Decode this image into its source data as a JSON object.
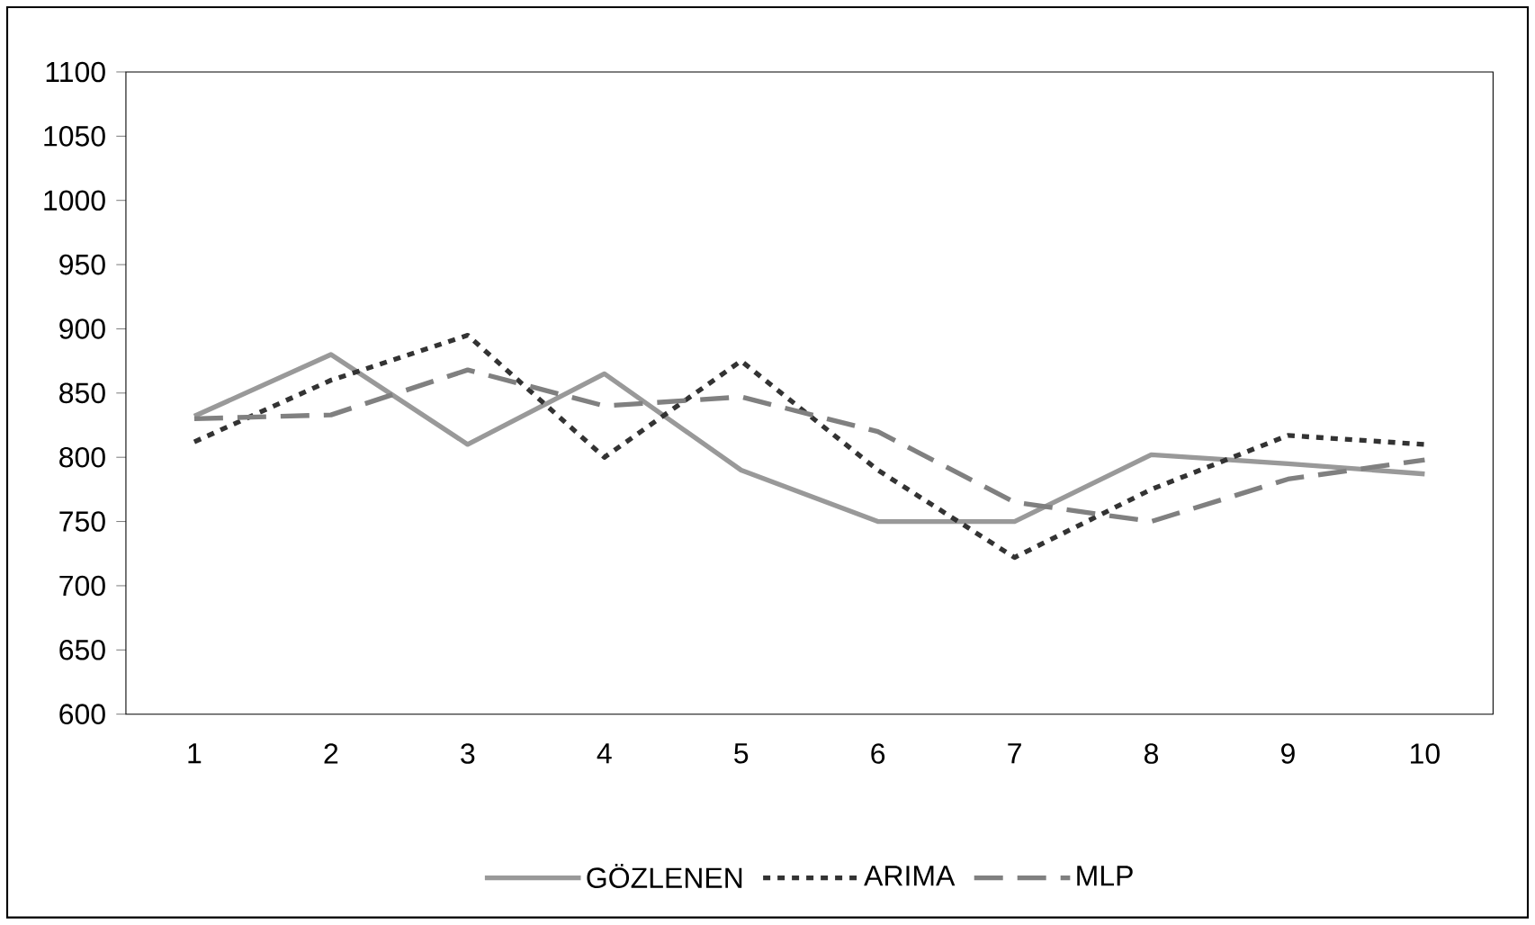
{
  "chart_data": {
    "type": "line",
    "categories": [
      "1",
      "2",
      "3",
      "4",
      "5",
      "6",
      "7",
      "8",
      "9",
      "10"
    ],
    "ylim": [
      600,
      1100
    ],
    "yticks": [
      600,
      650,
      700,
      750,
      800,
      850,
      900,
      950,
      1000,
      1050,
      1100
    ],
    "grid": false,
    "legend": "bottom",
    "marker": "none",
    "series": [
      {
        "name": "GÖZLENEN",
        "color": "#999999",
        "line_style": "solid",
        "values": [
          832,
          880,
          810,
          865,
          790,
          750,
          750,
          802,
          795,
          787
        ]
      },
      {
        "name": "ARIMA",
        "color": "#333333",
        "line_style": "dotted",
        "values": [
          812,
          860,
          895,
          800,
          875,
          790,
          722,
          775,
          817,
          810
        ]
      },
      {
        "name": "MLP",
        "color": "#808080",
        "line_style": "dashed",
        "values": [
          830,
          833,
          868,
          840,
          847,
          820,
          765,
          750,
          783,
          798
        ]
      }
    ]
  }
}
